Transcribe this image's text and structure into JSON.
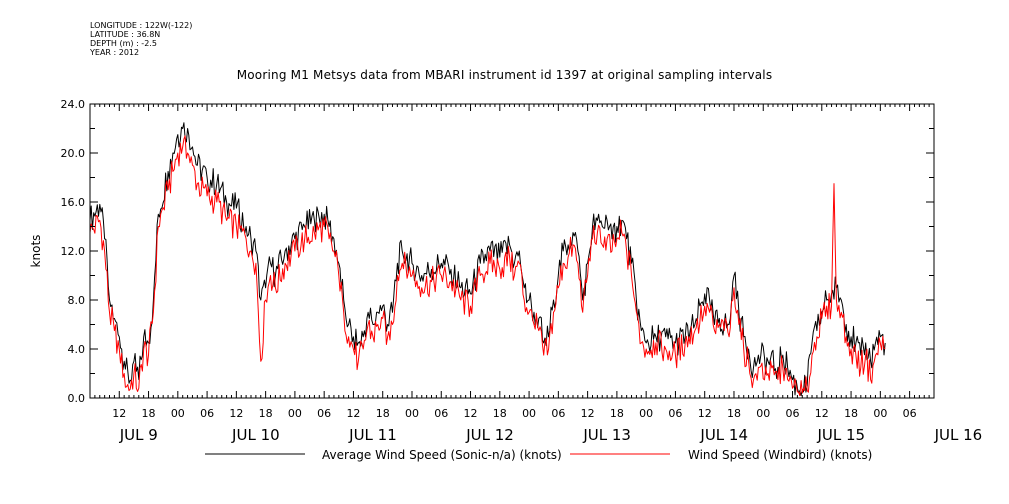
{
  "header": {
    "meta_lines": [
      "LONGITUDE : 122W(-122)",
      "LATITUDE : 36.8N",
      "DEPTH (m) : -2.5",
      "YEAR : 2012"
    ],
    "title": "Mooring M1 Metsys data from MBARI instrument id 1397 at original sampling intervals"
  },
  "chart_data": {
    "type": "line",
    "ylabel": "knots",
    "ylim": [
      0,
      24
    ],
    "yticks": [
      "0.0",
      "4.0",
      "8.0",
      "12.0",
      "16.0",
      "20.0",
      "24.0"
    ],
    "xlim_hours": [
      6,
      179
    ],
    "hour_tick_labels": [
      "12",
      "18",
      "00",
      "06",
      "12",
      "18",
      "00",
      "06",
      "12",
      "18",
      "00",
      "06",
      "12",
      "18",
      "00",
      "06",
      "12",
      "18",
      "00",
      "06",
      "12",
      "18",
      "00",
      "06",
      "12",
      "18",
      "00",
      "06"
    ],
    "day_labels": [
      "JUL  9",
      "JUL 10",
      "JUL 11",
      "JUL 12",
      "JUL 13",
      "JUL 14",
      "JUL 15",
      "JUL 16"
    ],
    "series": [
      {
        "name": "Average Wind Speed (Sonic-n/a) (knots)",
        "color": "#000000",
        "points": [
          [
            6,
            14.5
          ],
          [
            8,
            15.8
          ],
          [
            9,
            13
          ],
          [
            10,
            8
          ],
          [
            11,
            6.5
          ],
          [
            12,
            5
          ],
          [
            13,
            3
          ],
          [
            14,
            1.2
          ],
          [
            15,
            3
          ],
          [
            16,
            1.5
          ],
          [
            17,
            5
          ],
          [
            18,
            4.5
          ],
          [
            19,
            8
          ],
          [
            20,
            15
          ],
          [
            22,
            18.5
          ],
          [
            23,
            20
          ],
          [
            24,
            21.5
          ],
          [
            25,
            22
          ],
          [
            26,
            22
          ],
          [
            27,
            20.5
          ],
          [
            28,
            19
          ],
          [
            30,
            18
          ],
          [
            32,
            17.5
          ],
          [
            34,
            16
          ],
          [
            36,
            15.5
          ],
          [
            38,
            14
          ],
          [
            39,
            13
          ],
          [
            40,
            12
          ],
          [
            41,
            8
          ],
          [
            42,
            9
          ],
          [
            43,
            11
          ],
          [
            44,
            10
          ],
          [
            46,
            12
          ],
          [
            48,
            13
          ],
          [
            50,
            14
          ],
          [
            52,
            14.5
          ],
          [
            54,
            15
          ],
          [
            55,
            14
          ],
          [
            56,
            13
          ],
          [
            57,
            11
          ],
          [
            58,
            8
          ],
          [
            59,
            6
          ],
          [
            60,
            5
          ],
          [
            61,
            4.5
          ],
          [
            62,
            5
          ],
          [
            63,
            7
          ],
          [
            64,
            6
          ],
          [
            65,
            7
          ],
          [
            66,
            7.5
          ],
          [
            67,
            6
          ],
          [
            68,
            7
          ],
          [
            69,
            11
          ],
          [
            70,
            12
          ],
          [
            72,
            11
          ],
          [
            74,
            10
          ],
          [
            76,
            10.5
          ],
          [
            78,
            11
          ],
          [
            80,
            10.5
          ],
          [
            82,
            9
          ],
          [
            84,
            8.5
          ],
          [
            86,
            11
          ],
          [
            88,
            12
          ],
          [
            90,
            11.5
          ],
          [
            92,
            12.5
          ],
          [
            93,
            11
          ],
          [
            94,
            12
          ],
          [
            95,
            9
          ],
          [
            96,
            8
          ],
          [
            97,
            7
          ],
          [
            98,
            6.5
          ],
          [
            99,
            4.5
          ],
          [
            100,
            5
          ],
          [
            101,
            8
          ],
          [
            102,
            10
          ],
          [
            103,
            12
          ],
          [
            104,
            12.5
          ],
          [
            105,
            13.5
          ],
          [
            106,
            12
          ],
          [
            107,
            8
          ],
          [
            108,
            11
          ],
          [
            109,
            14
          ],
          [
            110,
            14.5
          ],
          [
            111,
            14
          ],
          [
            112,
            14.5
          ],
          [
            113,
            13
          ],
          [
            114,
            14
          ],
          [
            115,
            14.5
          ],
          [
            116,
            13
          ],
          [
            117,
            11
          ],
          [
            118,
            8
          ],
          [
            119,
            5.5
          ],
          [
            120,
            4.5
          ],
          [
            122,
            5
          ],
          [
            124,
            5
          ],
          [
            126,
            4.5
          ],
          [
            128,
            5
          ],
          [
            130,
            6
          ],
          [
            132,
            8.5
          ],
          [
            133,
            8
          ],
          [
            134,
            6
          ],
          [
            135,
            6.5
          ],
          [
            136,
            6
          ],
          [
            137,
            6
          ],
          [
            138,
            10
          ],
          [
            139,
            7
          ],
          [
            140,
            5
          ],
          [
            141,
            4
          ],
          [
            142,
            2.5
          ],
          [
            143,
            3.5
          ],
          [
            145,
            3
          ],
          [
            147,
            2.5
          ],
          [
            148,
            3.5
          ],
          [
            149,
            2.5
          ],
          [
            150,
            1.5
          ],
          [
            151,
            0.8
          ],
          [
            152,
            0.7
          ],
          [
            153,
            1
          ],
          [
            154,
            4.5
          ],
          [
            155,
            5.5
          ],
          [
            156,
            7
          ],
          [
            157,
            8
          ],
          [
            158,
            8.5
          ],
          [
            159,
            9
          ],
          [
            160,
            8
          ],
          [
            161,
            6
          ],
          [
            162,
            5
          ],
          [
            163,
            4.5
          ],
          [
            164,
            3.5
          ],
          [
            165,
            4.5
          ],
          [
            166,
            3
          ],
          [
            167,
            4.5
          ],
          [
            168,
            5
          ],
          [
            169,
            4.5
          ]
        ]
      },
      {
        "name": "Wind Speed (Windbird) (knots)",
        "color": "#ff0000",
        "points": [
          [
            6,
            13.5
          ],
          [
            8,
            14.5
          ],
          [
            9,
            12
          ],
          [
            10,
            7
          ],
          [
            11,
            5.5
          ],
          [
            12,
            4
          ],
          [
            13,
            2
          ],
          [
            14,
            0.6
          ],
          [
            15,
            2
          ],
          [
            16,
            0.8
          ],
          [
            17,
            4
          ],
          [
            18,
            3.5
          ],
          [
            19,
            7
          ],
          [
            20,
            14
          ],
          [
            22,
            17
          ],
          [
            23,
            18.5
          ],
          [
            24,
            20
          ],
          [
            25,
            20.5
          ],
          [
            26,
            20
          ],
          [
            27,
            19
          ],
          [
            28,
            17.5
          ],
          [
            30,
            16.5
          ],
          [
            32,
            16
          ],
          [
            34,
            14.5
          ],
          [
            36,
            14
          ],
          [
            38,
            13
          ],
          [
            39,
            12
          ],
          [
            40,
            11
          ],
          [
            41,
            3
          ],
          [
            42,
            8
          ],
          [
            43,
            10
          ],
          [
            44,
            9
          ],
          [
            46,
            11
          ],
          [
            48,
            12
          ],
          [
            50,
            13
          ],
          [
            52,
            13.5
          ],
          [
            54,
            14
          ],
          [
            55,
            13
          ],
          [
            56,
            12
          ],
          [
            57,
            10
          ],
          [
            58,
            7
          ],
          [
            59,
            5
          ],
          [
            60,
            4
          ],
          [
            61,
            3
          ],
          [
            62,
            4
          ],
          [
            63,
            6
          ],
          [
            64,
            5
          ],
          [
            65,
            6
          ],
          [
            66,
            6.5
          ],
          [
            67,
            5
          ],
          [
            68,
            6
          ],
          [
            69,
            10
          ],
          [
            70,
            11
          ],
          [
            72,
            10
          ],
          [
            74,
            9
          ],
          [
            76,
            9.5
          ],
          [
            78,
            10
          ],
          [
            80,
            9.5
          ],
          [
            82,
            8
          ],
          [
            84,
            7.5
          ],
          [
            86,
            10
          ],
          [
            88,
            11
          ],
          [
            90,
            10.5
          ],
          [
            92,
            11.5
          ],
          [
            93,
            10
          ],
          [
            94,
            11
          ],
          [
            95,
            8
          ],
          [
            96,
            7
          ],
          [
            97,
            6
          ],
          [
            98,
            5.5
          ],
          [
            99,
            3.5
          ],
          [
            100,
            4
          ],
          [
            101,
            7
          ],
          [
            102,
            9
          ],
          [
            103,
            11
          ],
          [
            104,
            11.5
          ],
          [
            105,
            12.5
          ],
          [
            106,
            11
          ],
          [
            107,
            7
          ],
          [
            108,
            10
          ],
          [
            109,
            13
          ],
          [
            110,
            13.5
          ],
          [
            111,
            12.5
          ],
          [
            112,
            13
          ],
          [
            113,
            12
          ],
          [
            114,
            13
          ],
          [
            115,
            13.5
          ],
          [
            116,
            12
          ],
          [
            117,
            10
          ],
          [
            118,
            7
          ],
          [
            119,
            4.5
          ],
          [
            120,
            4
          ],
          [
            122,
            4.5
          ],
          [
            124,
            4
          ],
          [
            126,
            3.5
          ],
          [
            128,
            4.5
          ],
          [
            130,
            5.5
          ],
          [
            132,
            7.5
          ],
          [
            133,
            7
          ],
          [
            134,
            5.5
          ],
          [
            135,
            6
          ],
          [
            136,
            5.5
          ],
          [
            137,
            5
          ],
          [
            138,
            9
          ],
          [
            139,
            6
          ],
          [
            140,
            4
          ],
          [
            141,
            3
          ],
          [
            142,
            1.5
          ],
          [
            143,
            2.5
          ],
          [
            145,
            2
          ],
          [
            147,
            1.5
          ],
          [
            148,
            2.5
          ],
          [
            149,
            1.5
          ],
          [
            150,
            0.8
          ],
          [
            151,
            0.5
          ],
          [
            152,
            0.4
          ],
          [
            153,
            0.6
          ],
          [
            154,
            3.5
          ],
          [
            155,
            5
          ],
          [
            156,
            6.5
          ],
          [
            157,
            7.5
          ],
          [
            158,
            7.5
          ],
          [
            158.5,
            17.5
          ],
          [
            159,
            8
          ],
          [
            160,
            7
          ],
          [
            161,
            5
          ],
          [
            162,
            4
          ],
          [
            163,
            3.5
          ],
          [
            164,
            2.5
          ],
          [
            165,
            3.5
          ],
          [
            166,
            1.5
          ],
          [
            167,
            3.5
          ],
          [
            168,
            4.5
          ],
          [
            169,
            4
          ]
        ]
      }
    ]
  }
}
